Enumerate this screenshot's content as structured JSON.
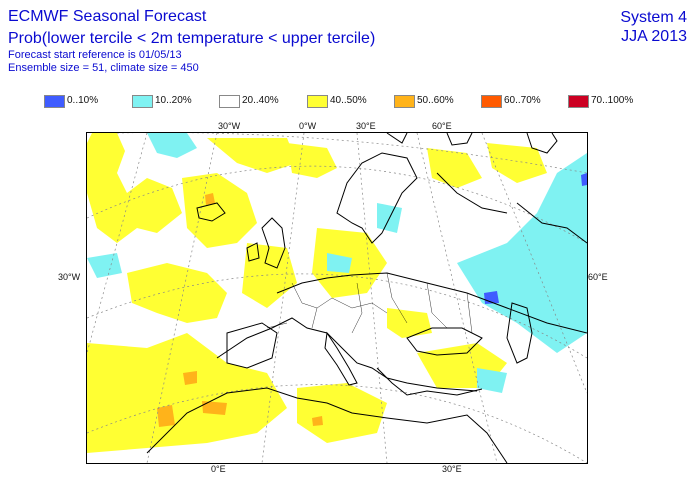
{
  "header": {
    "title": "ECMWF Seasonal Forecast",
    "subtitle": "Prob(lower tercile < 2m temperature < upper tercile)",
    "start_reference": "Forecast start reference is 01/05/13",
    "ensemble": "Ensemble size = 51, climate size = 450",
    "system": "System 4",
    "season": "JJA 2013"
  },
  "legend": [
    {
      "label": "0..10%",
      "color": "#3f5cff"
    },
    {
      "label": "10..20%",
      "color": "#7ff2f2"
    },
    {
      "label": "20..40%",
      "color": "#ffffff"
    },
    {
      "label": "40..50%",
      "color": "#ffff33"
    },
    {
      "label": "50..60%",
      "color": "#ffb31a"
    },
    {
      "label": "60..70%",
      "color": "#ff5a00"
    },
    {
      "label": "70..100%",
      "color": "#cc0022"
    }
  ],
  "map": {
    "top_lon_labels": [
      "30°W",
      "0°W",
      "30°E",
      "60°E"
    ],
    "bottom_lon_labels": [
      "0°E",
      "30°E"
    ],
    "left_lat_label": "30°W",
    "right_lat_label": "60°E"
  }
}
